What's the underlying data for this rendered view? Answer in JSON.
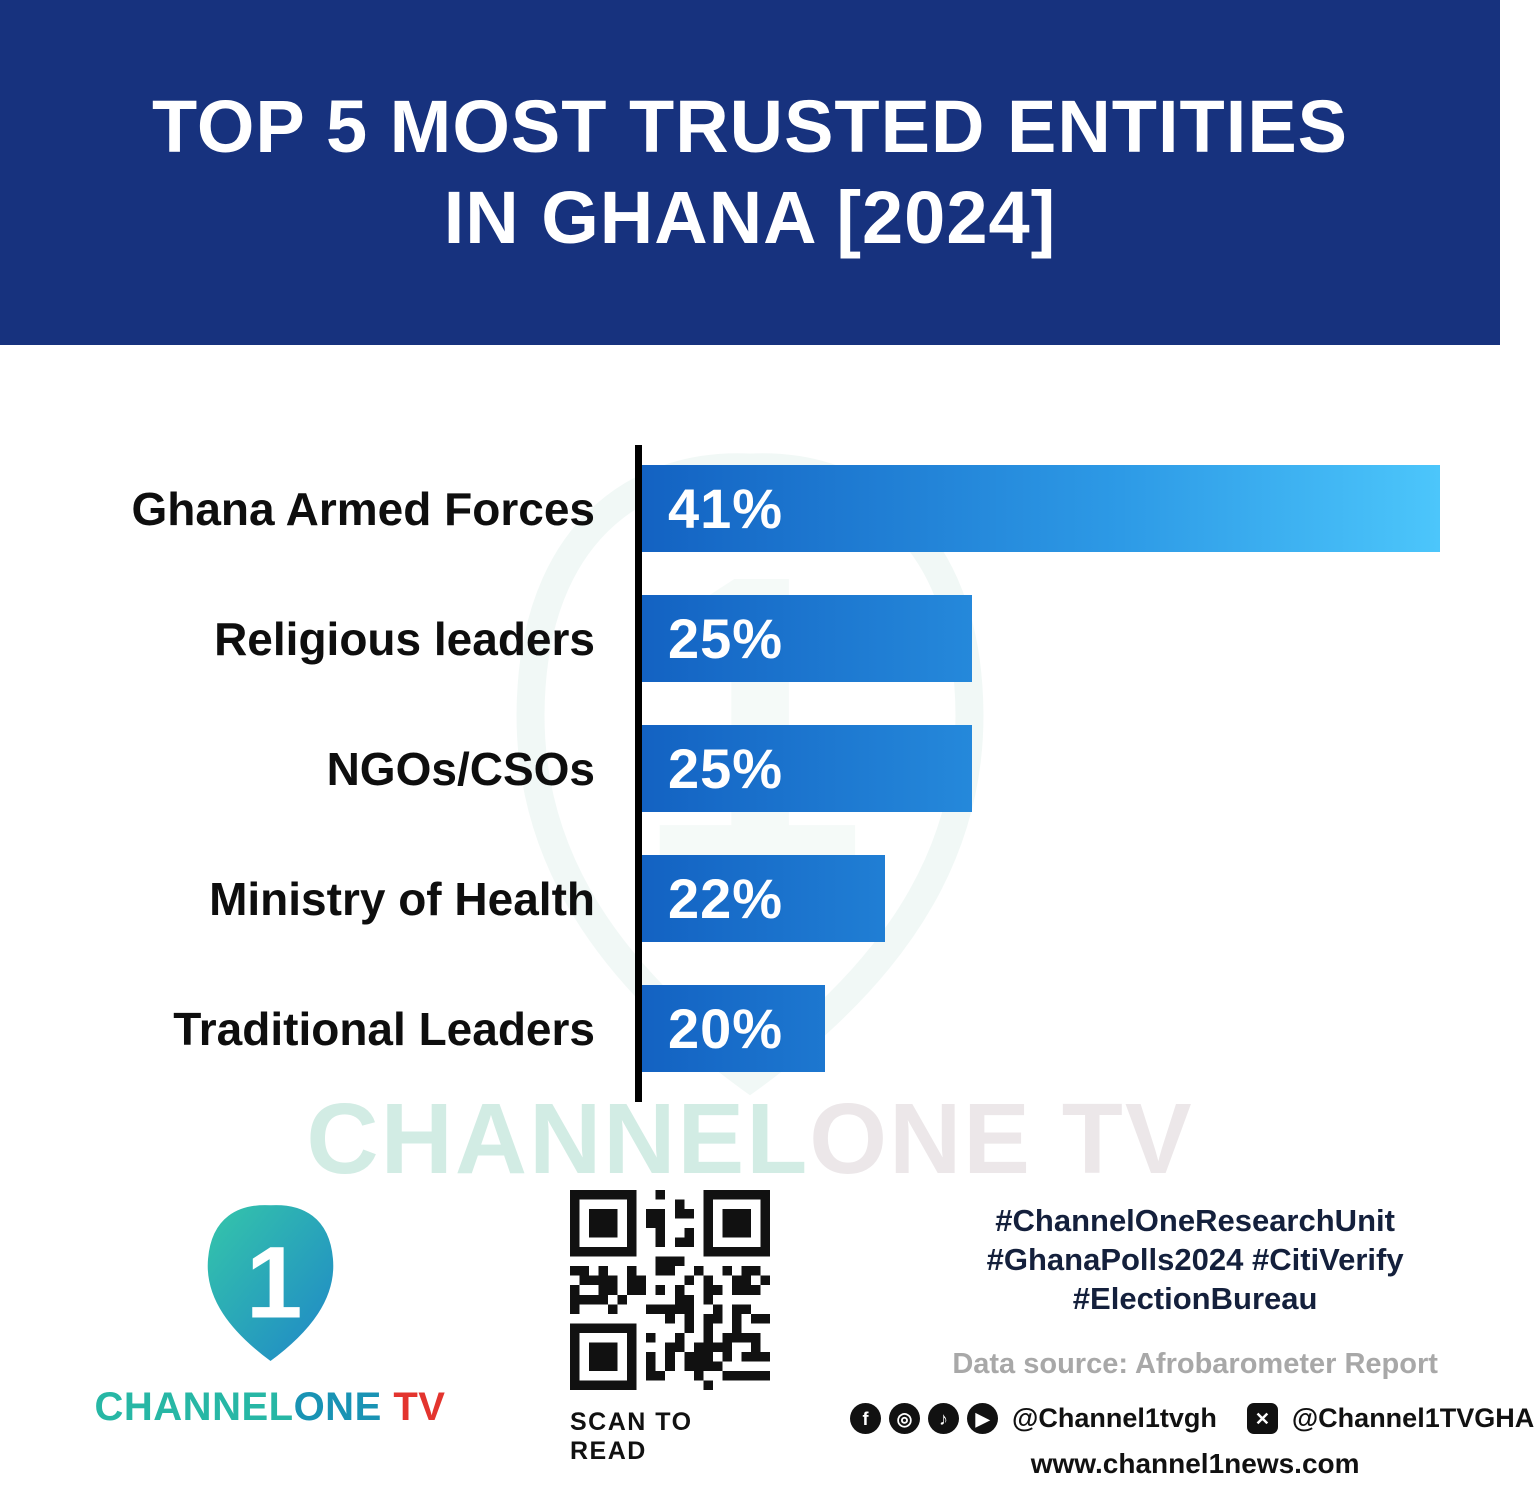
{
  "header": {
    "title_line1": "TOP 5 MOST TRUSTED ENTITIES",
    "title_line2": "IN GHANA [2024]"
  },
  "chart_data": {
    "type": "bar",
    "orientation": "horizontal",
    "title": "TOP 5 MOST TRUSTED ENTITIES IN GHANA [2024]",
    "categories": [
      "Ghana Armed Forces",
      "Religious leaders",
      "NGOs/CSOs",
      "Ministry of Health",
      "Traditional Leaders"
    ],
    "values": [
      41,
      25,
      25,
      22,
      20
    ],
    "value_labels": [
      "41%",
      "25%",
      "25%",
      "22%",
      "20%"
    ],
    "display_width_pct": [
      100,
      41.3,
      41.3,
      30.4,
      22.9
    ],
    "xlabel": "",
    "ylabel": "",
    "grid": false,
    "legend": false,
    "bar_gradient_start": "#1362C2",
    "bar_gradient_end": "#4CC6FB",
    "axis_color": "#000000"
  },
  "watermark": {
    "part1": "CHANNEL",
    "part2": "ONE TV"
  },
  "footer": {
    "logo": {
      "mark": "1",
      "channel": "CHANNEL",
      "one": "ONE",
      "tv": " TV"
    },
    "qr_caption": "SCAN TO READ",
    "hashtags_line1": "#ChannelOneResearchUnit",
    "hashtags_line2": "#GhanaPolls2024 #CitiVerify",
    "hashtags_line3": "#ElectionBureau",
    "data_source": "Data source: Afrobarometer Report",
    "social_icons": [
      "facebook",
      "instagram",
      "tiktok",
      "youtube",
      "x"
    ],
    "social_handle1": "@Channel1tvgh",
    "social_handle2": "@Channel1TVGHA",
    "website": "www.channel1news.com"
  },
  "colors": {
    "header_bg": "#17327E",
    "bar_gradient_start": "#1362C2",
    "bar_gradient_end": "#4CC6FB",
    "accent_teal": "#27b7a5",
    "tv_red": "#e3342e",
    "watermark_teal": "#d2ece4"
  }
}
